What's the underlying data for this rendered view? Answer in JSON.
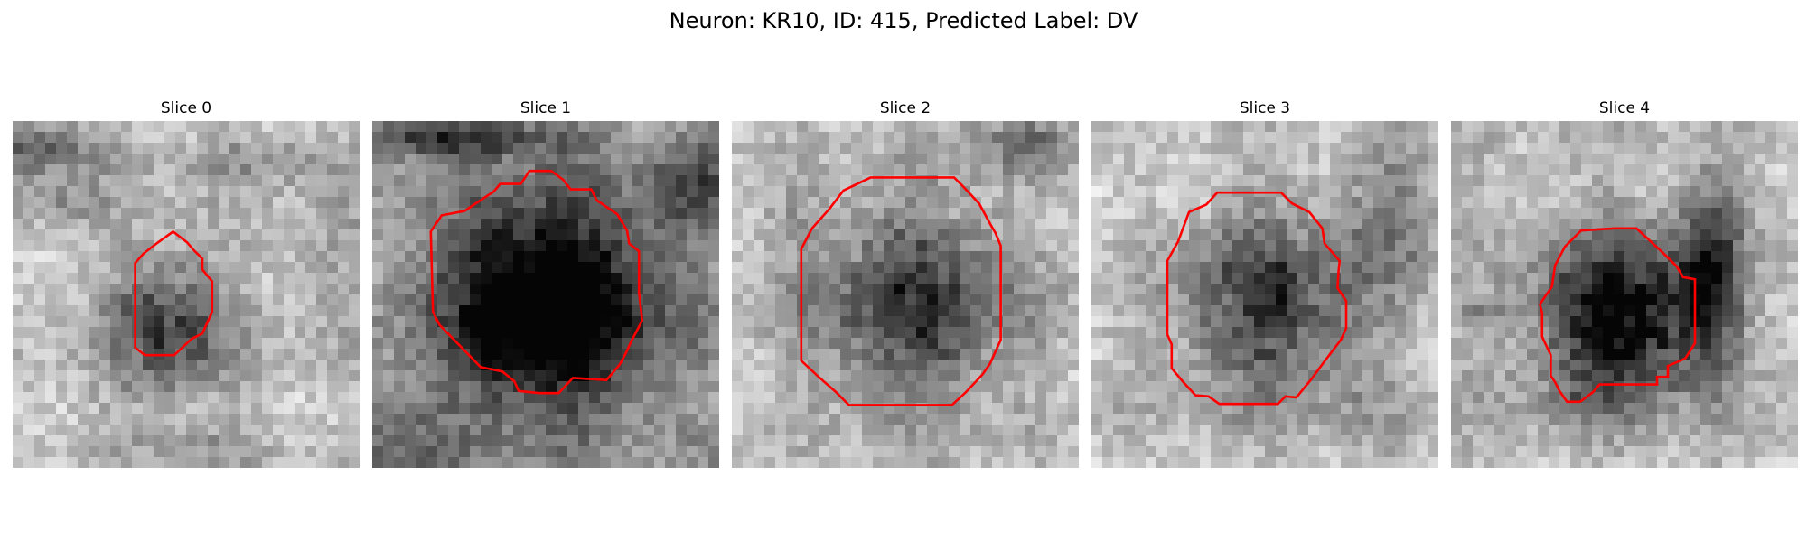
{
  "figure": {
    "title": "Neuron: KR10, ID: 415, Predicted Label: DV"
  },
  "panels": [
    {
      "title": "Slice 0",
      "outline_color": "#ff0000"
    },
    {
      "title": "Slice 1",
      "outline_color": "#ff0000"
    },
    {
      "title": "Slice 2",
      "outline_color": "#ff0000"
    },
    {
      "title": "Slice 3",
      "outline_color": "#ff0000"
    },
    {
      "title": "Slice 4",
      "outline_color": "#ff0000"
    }
  ],
  "colors": {
    "background": "#ffffff",
    "outline": "#ff0000",
    "image_colormap": "grayscale"
  }
}
